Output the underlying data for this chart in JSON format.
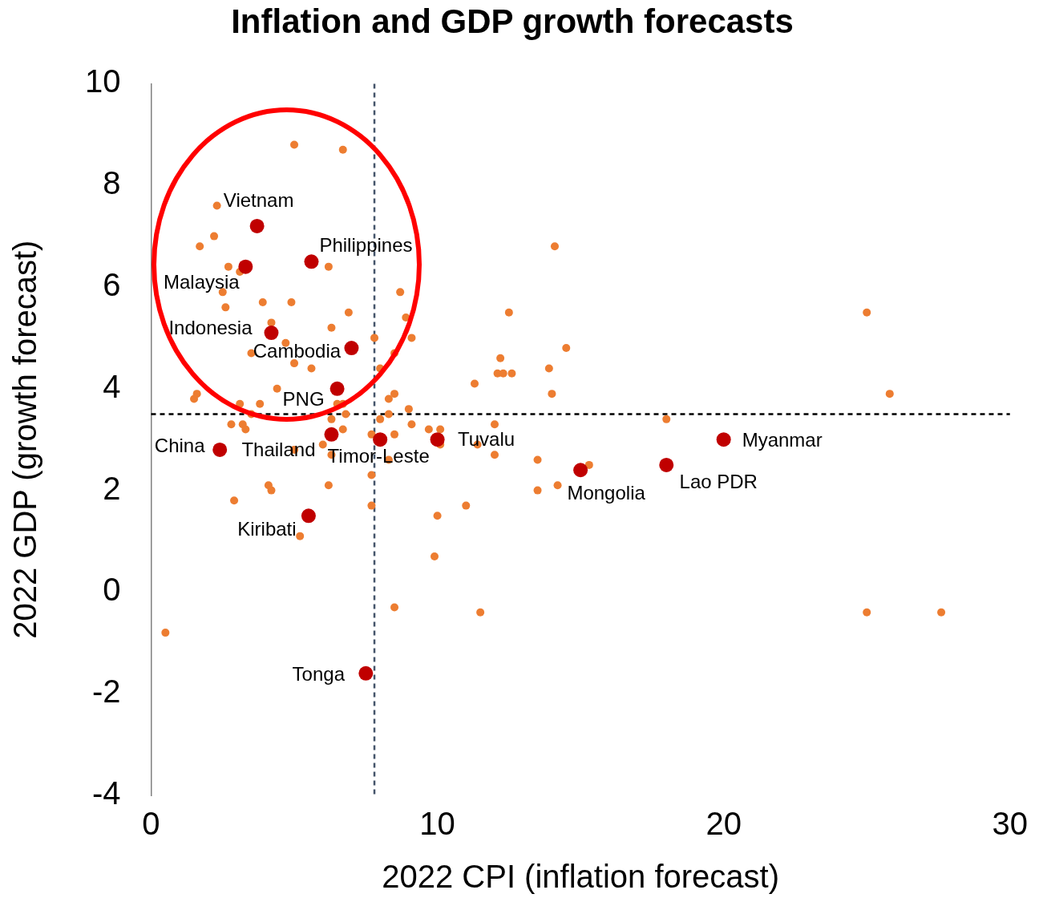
{
  "chart_data": {
    "type": "scatter",
    "title": "Inflation and GDP growth forecasts",
    "xlabel": "2022 CPI (inflation forecast)",
    "ylabel": "2022 GDP (growth forecast)",
    "xlim": [
      0,
      30
    ],
    "xticks": [
      0,
      10,
      20,
      30
    ],
    "ylim": [
      -4,
      10
    ],
    "yticks": [
      -4,
      -2,
      0,
      2,
      4,
      6,
      8,
      10
    ],
    "grid": false,
    "legend": false,
    "marker": "circle",
    "series": [
      {
        "color": "#ed7d31",
        "x": [
          5.0,
          6.7,
          2.3,
          2.2,
          1.7,
          2.7,
          3.1,
          6.2,
          2.5,
          2.6,
          3.9,
          4.9,
          6.9,
          4.2,
          6.3,
          4.7,
          3.5,
          5.0,
          5.6,
          7.8,
          8.7,
          8.9,
          9.1,
          8.5,
          8.0,
          4.4,
          1.6,
          1.5,
          3.1,
          3.8,
          3.5,
          2.8,
          3.2,
          3.3,
          6.5,
          6.7,
          6.8,
          6.3,
          6.7,
          5.0,
          6.0,
          6.3,
          8.3,
          8.5,
          9.0,
          8.3,
          9.1,
          8.0,
          7.7,
          8.5,
          8.3,
          7.7,
          7.7,
          4.1,
          4.2,
          2.9,
          6.2,
          5.2,
          0.5,
          8.5,
          9.9,
          10.0,
          9.7,
          10.1,
          10.1,
          11.0,
          11.5,
          11.4,
          12.0,
          12.0,
          11.3,
          12.1,
          12.3,
          12.6,
          12.2,
          12.5,
          14.1,
          14.5,
          13.9,
          14.0,
          13.5,
          13.5,
          14.2,
          15.3,
          18.0,
          25.0,
          25.8,
          25.0,
          27.6
        ],
        "values": [
          8.8,
          8.7,
          7.6,
          7.0,
          6.8,
          6.4,
          6.3,
          6.4,
          5.9,
          5.6,
          5.7,
          5.7,
          5.5,
          5.3,
          5.2,
          4.9,
          4.7,
          4.5,
          4.4,
          5.0,
          5.9,
          5.4,
          5.0,
          4.7,
          4.4,
          4.0,
          3.9,
          3.8,
          3.7,
          3.7,
          3.5,
          3.3,
          3.3,
          3.2,
          3.7,
          3.7,
          3.5,
          3.4,
          3.2,
          2.8,
          2.9,
          2.7,
          3.8,
          3.9,
          3.6,
          3.5,
          3.3,
          3.4,
          3.1,
          3.1,
          2.6,
          2.3,
          1.7,
          2.1,
          2.0,
          1.8,
          2.1,
          1.1,
          -0.8,
          -0.3,
          0.7,
          1.5,
          3.2,
          3.2,
          2.9,
          1.7,
          -0.4,
          2.9,
          3.3,
          2.7,
          4.1,
          4.3,
          4.3,
          4.3,
          4.6,
          5.5,
          6.8,
          4.8,
          4.4,
          3.9,
          2.6,
          2.0,
          2.1,
          2.5,
          3.4,
          5.5,
          3.9,
          -0.4,
          -0.4
        ]
      },
      {
        "color": "#c00000",
        "x": [
          3.7,
          3.3,
          5.6,
          4.2,
          7.0,
          6.5,
          6.3,
          2.4,
          8.0,
          10.0,
          5.5,
          7.5,
          15.0,
          18.0,
          20.0
        ],
        "values": [
          7.2,
          6.4,
          6.5,
          5.1,
          4.8,
          4.0,
          3.1,
          2.8,
          3.0,
          3.0,
          1.5,
          -1.6,
          2.4,
          2.5,
          3.0
        ]
      }
    ],
    "ref_lines": [
      {
        "axis": "x",
        "value": 7.8,
        "color": "#44546a",
        "line_style": "dashed"
      },
      {
        "axis": "y",
        "value": 3.5,
        "color": "#000000",
        "line_style": "dashed"
      }
    ],
    "annotations": [
      {
        "text": "Vietnam",
        "x": 3.7,
        "y": 7.2
      },
      {
        "text": "Malaysia",
        "x": 3.3,
        "y": 6.4
      },
      {
        "text": "Philippines",
        "x": 5.6,
        "y": 6.5
      },
      {
        "text": "Indonesia",
        "x": 4.2,
        "y": 5.1
      },
      {
        "text": "Cambodia",
        "x": 7.0,
        "y": 4.8
      },
      {
        "text": "PNG",
        "x": 6.5,
        "y": 4.0
      },
      {
        "text": "Thailand",
        "x": 6.3,
        "y": 3.1
      },
      {
        "text": "China",
        "x": 2.4,
        "y": 2.8
      },
      {
        "text": "Timor-Leste",
        "x": 8.0,
        "y": 3.0
      },
      {
        "text": "Tuvalu",
        "x": 10.0,
        "y": 3.0
      },
      {
        "text": "Kiribati",
        "x": 5.5,
        "y": 1.5
      },
      {
        "text": "Tonga",
        "x": 7.5,
        "y": -1.6
      },
      {
        "text": "Mongolia",
        "x": 15.0,
        "y": 2.4
      },
      {
        "text": "Lao PDR",
        "x": 18.0,
        "y": 2.5
      },
      {
        "text": "Myanmar",
        "x": 20.0,
        "y": 3.0
      }
    ]
  }
}
